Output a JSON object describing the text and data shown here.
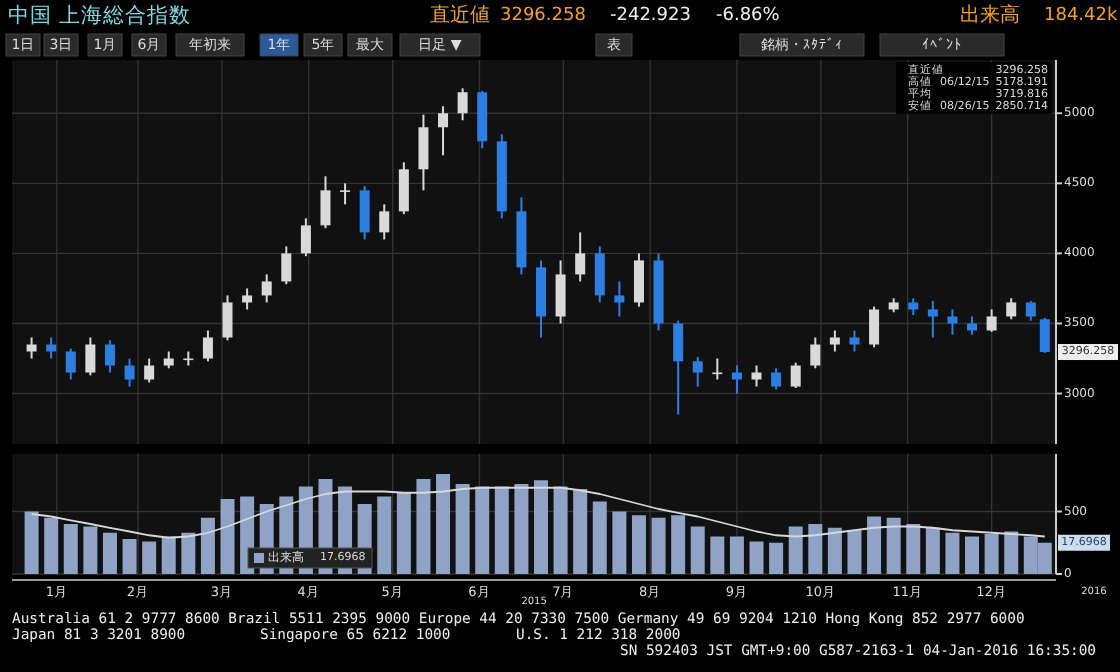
{
  "chart_data": [
    {
      "type": "candlestick",
      "title": "中国 上海総合指数",
      "x": [
        "2015-01-07",
        "2015-01-14",
        "2015-01-21",
        "2015-01-28",
        "2015-02-04",
        "2015-02-11",
        "2015-02-18",
        "2015-02-25",
        "2015-03-04",
        "2015-03-11",
        "2015-03-18",
        "2015-03-25",
        "2015-04-01",
        "2015-04-08",
        "2015-04-15",
        "2015-04-22",
        "2015-04-29",
        "2015-05-06",
        "2015-05-13",
        "2015-05-20",
        "2015-05-27",
        "2015-06-03",
        "2015-06-10",
        "2015-06-17",
        "2015-06-24",
        "2015-07-01",
        "2015-07-08",
        "2015-07-15",
        "2015-07-22",
        "2015-07-29",
        "2015-08-05",
        "2015-08-12",
        "2015-08-19",
        "2015-08-26",
        "2015-09-02",
        "2015-09-09",
        "2015-09-16",
        "2015-09-23",
        "2015-09-30",
        "2015-10-07",
        "2015-10-14",
        "2015-10-21",
        "2015-10-28",
        "2015-11-04",
        "2015-11-11",
        "2015-11-18",
        "2015-11-25",
        "2015-12-02",
        "2015-12-09",
        "2015-12-16",
        "2015-12-23",
        "2015-12-30",
        "2016-01-04"
      ],
      "ohlc": [
        [
          3300,
          3400,
          3250,
          3350
        ],
        [
          3350,
          3400,
          3250,
          3300
        ],
        [
          3300,
          3320,
          3100,
          3150
        ],
        [
          3150,
          3400,
          3130,
          3350
        ],
        [
          3350,
          3380,
          3150,
          3200
        ],
        [
          3200,
          3250,
          3050,
          3100
        ],
        [
          3100,
          3250,
          3080,
          3200
        ],
        [
          3200,
          3300,
          3180,
          3250
        ],
        [
          3250,
          3300,
          3200,
          3250
        ],
        [
          3250,
          3450,
          3230,
          3400
        ],
        [
          3400,
          3700,
          3380,
          3650
        ],
        [
          3650,
          3750,
          3600,
          3700
        ],
        [
          3700,
          3850,
          3650,
          3800
        ],
        [
          3800,
          4050,
          3780,
          4000
        ],
        [
          4000,
          4250,
          3980,
          4200
        ],
        [
          4200,
          4550,
          4180,
          4450
        ],
        [
          4450,
          4500,
          4350,
          4450
        ],
        [
          4450,
          4480,
          4100,
          4150
        ],
        [
          4150,
          4350,
          4100,
          4300
        ],
        [
          4300,
          4650,
          4280,
          4600
        ],
        [
          4600,
          4990,
          4450,
          4900
        ],
        [
          4900,
          5050,
          4700,
          5000
        ],
        [
          5000,
          5178.191,
          4950,
          5150
        ],
        [
          5150,
          5160,
          4750,
          4800
        ],
        [
          4800,
          4850,
          4250,
          4300
        ],
        [
          4300,
          4400,
          3850,
          3900
        ],
        [
          3900,
          3950,
          3400,
          3550
        ],
        [
          3550,
          3950,
          3500,
          3850
        ],
        [
          3850,
          4150,
          3800,
          4000
        ],
        [
          4000,
          4050,
          3650,
          3700
        ],
        [
          3700,
          3800,
          3550,
          3650
        ],
        [
          3650,
          4000,
          3620,
          3950
        ],
        [
          3950,
          4000,
          3450,
          3500
        ],
        [
          3500,
          3520,
          2850.714,
          3230
        ],
        [
          3230,
          3260,
          3050,
          3150
        ],
        [
          3150,
          3250,
          3100,
          3150
        ],
        [
          3150,
          3200,
          3000,
          3100
        ],
        [
          3100,
          3200,
          3050,
          3150
        ],
        [
          3150,
          3180,
          3030,
          3050
        ],
        [
          3050,
          3220,
          3040,
          3200
        ],
        [
          3200,
          3400,
          3180,
          3350
        ],
        [
          3350,
          3450,
          3300,
          3400
        ],
        [
          3400,
          3450,
          3300,
          3350
        ],
        [
          3350,
          3620,
          3330,
          3600
        ],
        [
          3600,
          3680,
          3580,
          3650
        ],
        [
          3650,
          3680,
          3560,
          3600
        ],
        [
          3600,
          3660,
          3400,
          3550
        ],
        [
          3550,
          3600,
          3420,
          3500
        ],
        [
          3500,
          3550,
          3420,
          3450
        ],
        [
          3450,
          3600,
          3440,
          3550
        ],
        [
          3550,
          3680,
          3530,
          3650
        ],
        [
          3650,
          3660,
          3520,
          3550
        ],
        [
          3530,
          3540,
          3290,
          3296.258
        ]
      ],
      "xlim": [
        "2014-12-31",
        "2016-01-08"
      ],
      "xticks": [
        {
          "value": "2015-01-16",
          "label": null
        },
        {
          "value": "2015-02-14",
          "label": null
        },
        {
          "value": "2015-03-16",
          "label": null
        },
        {
          "value": "2015-04-16",
          "label": null
        },
        {
          "value": "2015-05-16",
          "label": null
        },
        {
          "value": "2015-06-16",
          "label": null
        },
        {
          "value": "2015-07-16",
          "label": null
        },
        {
          "value": "2015-08-16",
          "label": null
        },
        {
          "value": "2015-09-16",
          "label": null
        },
        {
          "value": "2015-10-16",
          "label": null
        },
        {
          "value": "2015-11-16",
          "label": null
        },
        {
          "value": "2015-12-16",
          "label": null
        }
      ],
      "ylim": [
        2640,
        5380
      ],
      "yticks": [
        3000,
        3500,
        4000,
        4500,
        5000
      ],
      "grid": true,
      "tick_labels": "y",
      "annotations": [
        "直近値",
        "3296.258",
        "-242.923",
        "-6.86%",
        "出来高",
        "184.42k",
        "1日",
        "3日",
        "1月",
        "6月",
        "年初来",
        "1年",
        "5年",
        "最大",
        "日足 ▼",
        "表",
        "銘柄・ｽﾀﾃﾞｨ",
        "ｲﾍﾞﾝﾄ",
        "直近値",
        "3296.258",
        "高値",
        "06/12/15",
        "5178.191",
        "平均",
        "3719.816",
        "安値",
        "08/26/15",
        "2850.714",
        {
          "text": "3296.258",
          "x": "2016-01-04",
          "y": 3296.258
        }
      ]
    },
    {
      "type": "bar",
      "x": [
        "2015-01-07",
        "2015-01-14",
        "2015-01-21",
        "2015-01-28",
        "2015-02-04",
        "2015-02-11",
        "2015-02-18",
        "2015-02-25",
        "2015-03-04",
        "2015-03-11",
        "2015-03-18",
        "2015-03-25",
        "2015-04-01",
        "2015-04-08",
        "2015-04-15",
        "2015-04-22",
        "2015-04-29",
        "2015-05-06",
        "2015-05-13",
        "2015-05-20",
        "2015-05-27",
        "2015-06-03",
        "2015-06-10",
        "2015-06-17",
        "2015-06-24",
        "2015-07-01",
        "2015-07-08",
        "2015-07-15",
        "2015-07-22",
        "2015-07-29",
        "2015-08-05",
        "2015-08-12",
        "2015-08-19",
        "2015-08-26",
        "2015-09-02",
        "2015-09-09",
        "2015-09-16",
        "2015-09-23",
        "2015-09-30",
        "2015-10-07",
        "2015-10-14",
        "2015-10-21",
        "2015-10-28",
        "2015-11-04",
        "2015-11-11",
        "2015-11-18",
        "2015-11-25",
        "2015-12-02",
        "2015-12-09",
        "2015-12-16",
        "2015-12-23",
        "2015-12-30",
        "2016-01-04"
      ],
      "series": [
        {
          "name": "出来高",
          "color": "#8ea3c6",
          "values": [
            500,
            450,
            400,
            380,
            330,
            280,
            260,
            300,
            330,
            450,
            600,
            620,
            560,
            620,
            700,
            760,
            700,
            560,
            620,
            650,
            760,
            800,
            720,
            700,
            700,
            720,
            750,
            700,
            680,
            580,
            500,
            470,
            450,
            470,
            380,
            300,
            300,
            260,
            250,
            380,
            400,
            370,
            350,
            460,
            450,
            400,
            370,
            330,
            300,
            320,
            340,
            300,
            250
          ]
        },
        {
          "type": "line",
          "color": "#d8d8d8",
          "values": [
            480,
            460,
            430,
            400,
            370,
            340,
            310,
            290,
            300,
            330,
            380,
            440,
            500,
            550,
            600,
            640,
            660,
            660,
            660,
            650,
            650,
            660,
            680,
            690,
            690,
            690,
            690,
            690,
            670,
            640,
            600,
            560,
            520,
            490,
            460,
            420,
            380,
            340,
            310,
            300,
            310,
            330,
            350,
            370,
            380,
            380,
            370,
            350,
            340,
            330,
            320,
            310,
            300
          ]
        }
      ],
      "xlim": [
        "2014-12-31",
        "2016-01-08"
      ],
      "xticks": [
        {
          "value": "2015-01-16",
          "label": "1月"
        },
        {
          "value": "2015-02-14",
          "label": "2月"
        },
        {
          "value": "2015-03-16",
          "label": "3月"
        },
        {
          "value": "2015-04-16",
          "label": "4月"
        },
        {
          "value": "2015-05-16",
          "label": "5月"
        },
        {
          "value": "2015-06-16",
          "label": "6月"
        },
        {
          "value": "2015-07-16",
          "label": "7月"
        },
        {
          "value": "2015-08-16",
          "label": "8月"
        },
        {
          "value": "2015-09-16",
          "label": "9月"
        },
        {
          "value": "2015-10-16",
          "label": "10月"
        },
        {
          "value": "2015-11-16",
          "label": "11月"
        },
        {
          "value": "2015-12-16",
          "label": "12月"
        }
      ],
      "ylim": [
        0,
        960
      ],
      "yticks": [
        0,
        500
      ],
      "grid": true,
      "legend": "bottom left",
      "annotations": [
        "17.6968",
        "17.6968",
        "2015",
        "2016",
        "Australia 61 2 9777 8600 Brazil 5511 2395 9000 Europe 44 20 7330 7500 Germany 49 69 9204 1210 Hong Kong 852 2977 6000",
        "Japan 81 3 3201 8900",
        "Singapore 65 6212 1000",
        "U.S. 1 212 318 2000",
        "SN 592403 JST  GMT+9:00 G587-2163-1 04-Jan-2016 16:35:00"
      ]
    }
  ]
}
